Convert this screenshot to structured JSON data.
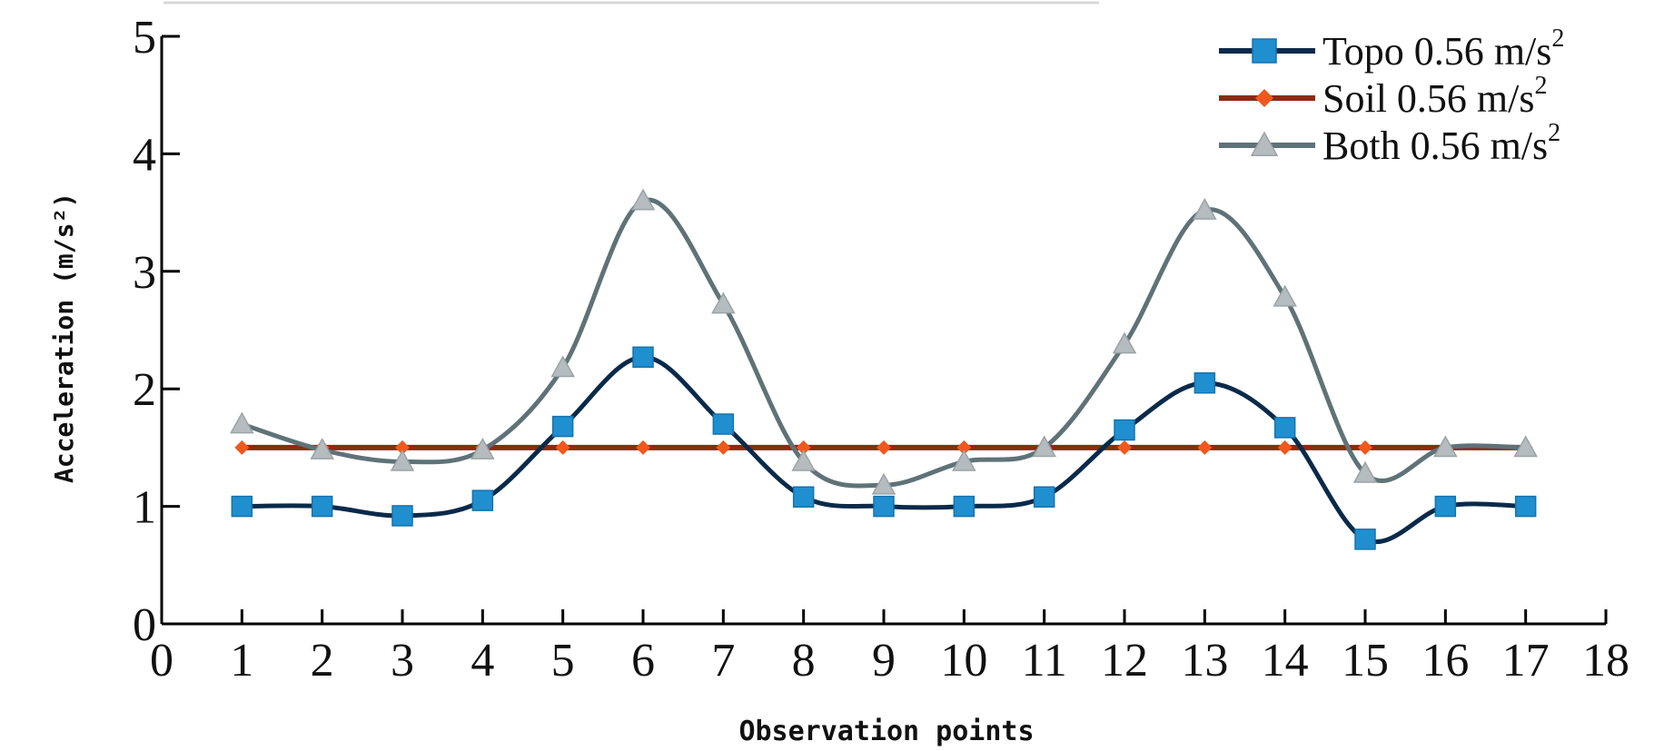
{
  "chart_data": {
    "type": "line",
    "title": "",
    "xlabel": "Observation points",
    "ylabel": "Acceleration (m/s²)",
    "xlim": [
      0,
      18
    ],
    "ylim": [
      0,
      5
    ],
    "x_ticks": [
      0,
      1,
      2,
      3,
      4,
      5,
      6,
      7,
      8,
      9,
      10,
      11,
      12,
      13,
      14,
      15,
      16,
      17,
      18
    ],
    "y_ticks": [
      0,
      1,
      2,
      3,
      4,
      5
    ],
    "x": [
      1,
      2,
      3,
      4,
      5,
      6,
      7,
      8,
      9,
      10,
      11,
      12,
      13,
      14,
      15,
      16,
      17
    ],
    "series": [
      {
        "name": "Topo 0.56m/s2",
        "legend_text": "Topo 0.56",
        "legend_unit": "m/s",
        "legend_sup": "2",
        "color": "#0a2a4a",
        "marker": "square",
        "marker_color": "#1f8fd0",
        "values": [
          1.0,
          1.0,
          0.92,
          1.05,
          1.68,
          2.27,
          1.7,
          1.08,
          1.0,
          1.0,
          1.08,
          1.65,
          2.05,
          1.67,
          0.72,
          1.0,
          1.0
        ]
      },
      {
        "name": "Soil 0.56 m/s2",
        "legend_text": "Soil 0.56",
        "legend_unit": "m/s",
        "legend_sup": "2",
        "color": "#8b2a12",
        "marker": "diamond",
        "marker_color": "#f0581e",
        "values": [
          1.5,
          1.5,
          1.5,
          1.5,
          1.5,
          1.5,
          1.5,
          1.5,
          1.5,
          1.5,
          1.5,
          1.5,
          1.5,
          1.5,
          1.5,
          1.5,
          1.5
        ]
      },
      {
        "name": "Both 0.56 m/s2",
        "legend_text": "Both 0.56",
        "legend_unit": "m/s",
        "legend_sup": "2",
        "color": "#5f7277",
        "marker": "triangle",
        "marker_color": "#b5bcbf",
        "values": [
          1.7,
          1.48,
          1.38,
          1.48,
          2.18,
          3.6,
          2.72,
          1.38,
          1.18,
          1.38,
          1.5,
          2.38,
          3.52,
          2.78,
          1.28,
          1.5,
          1.5
        ]
      }
    ],
    "legend_position": "top-right",
    "grid": false
  }
}
